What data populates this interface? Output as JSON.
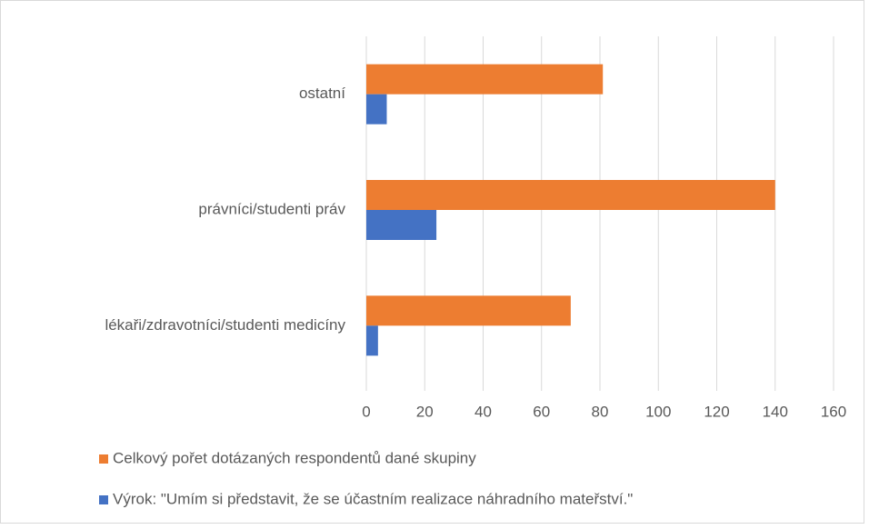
{
  "chart_data": {
    "type": "bar",
    "orientation": "horizontal",
    "categories": [
      "lékaři/zdravotníci/studenti medicíny",
      "právníci/studenti práv",
      "ostatní"
    ],
    "series": [
      {
        "name": "Celkový pořet dotázaných respondentů dané skupiny",
        "color": "#ed7d31",
        "values": [
          70,
          140,
          81
        ]
      },
      {
        "name": "Výrok: \"Umím si představit, že se účastním realizace náhradního mateřství.\"",
        "color": "#4472c4",
        "values": [
          4,
          24,
          7
        ]
      }
    ],
    "xlim": [
      0,
      160
    ],
    "xticks": [
      0,
      20,
      40,
      60,
      80,
      100,
      120,
      140,
      160
    ],
    "grid": true,
    "legend": "bottom"
  }
}
